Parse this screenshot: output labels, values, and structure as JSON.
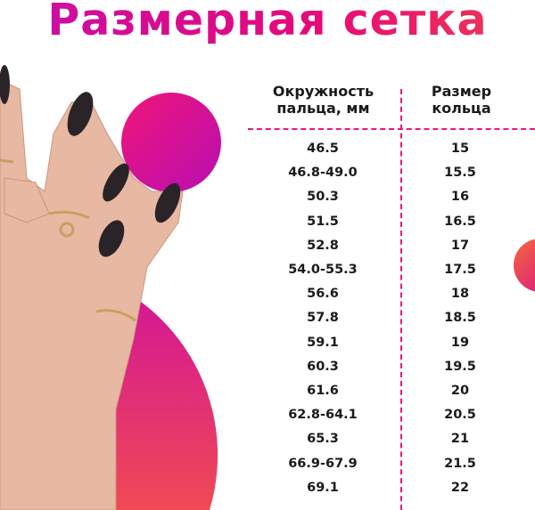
{
  "title": "Размерная сетка",
  "colors": {
    "accent": "#e8177d",
    "gradient_start": "#c80fa8",
    "gradient_end": "#f03a50",
    "text": "#1a1a1a"
  },
  "table": {
    "headers": [
      "Окружность\nпальца, мм",
      "Размер\nкольца"
    ],
    "header_lines": [
      [
        "Окружность",
        "пальца, мм"
      ],
      [
        "Размер",
        "кольца"
      ]
    ],
    "rows": [
      [
        "46.5",
        "15"
      ],
      [
        "46.8-49.0",
        "15.5"
      ],
      [
        "50.3",
        "16"
      ],
      [
        "51.5",
        "16.5"
      ],
      [
        "52.8",
        "17"
      ],
      [
        "54.0-55.3",
        "17.5"
      ],
      [
        "56.6",
        "18"
      ],
      [
        "57.8",
        "18.5"
      ],
      [
        "59.1",
        "19"
      ],
      [
        "60.3",
        "19.5"
      ],
      [
        "61.6",
        "20"
      ],
      [
        "62.8-64.1",
        "20.5"
      ],
      [
        "65.3",
        "21"
      ],
      [
        "66.9-67.9",
        "21.5"
      ],
      [
        "69.1",
        "22"
      ]
    ]
  }
}
